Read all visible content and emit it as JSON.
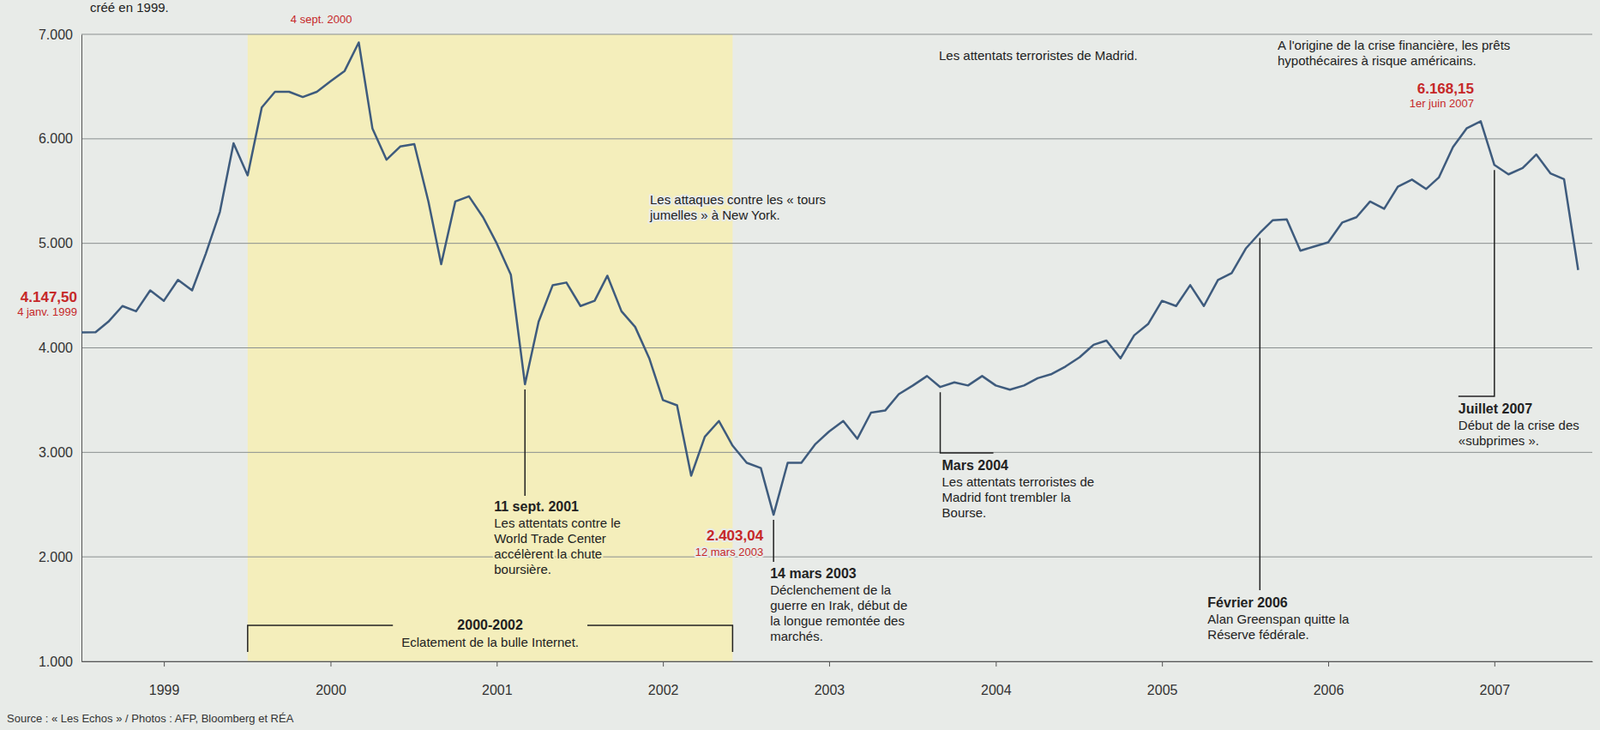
{
  "chart_data": {
    "type": "line",
    "color": "#3e5b7d",
    "grid": true,
    "x": [
      "1999-01",
      "1999-02",
      "1999-03",
      "1999-04",
      "1999-05",
      "1999-06",
      "1999-07",
      "1999-08",
      "1999-09",
      "1999-10",
      "1999-11",
      "1999-12",
      "2000-01",
      "2000-02",
      "2000-03",
      "2000-04",
      "2000-05",
      "2000-06",
      "2000-07",
      "2000-08",
      "2000-09",
      "2000-10",
      "2000-11",
      "2000-12",
      "2001-01",
      "2001-02",
      "2001-03",
      "2001-04",
      "2001-05",
      "2001-06",
      "2001-07",
      "2001-08",
      "2001-09",
      "2001-10",
      "2001-11",
      "2001-12",
      "2002-01",
      "2002-02",
      "2002-03",
      "2002-04",
      "2002-05",
      "2002-06",
      "2002-07",
      "2002-08",
      "2002-09",
      "2002-10",
      "2002-11",
      "2002-12",
      "2003-01",
      "2003-02",
      "2003-03",
      "2003-04",
      "2003-05",
      "2003-06",
      "2003-07",
      "2003-08",
      "2003-09",
      "2003-10",
      "2003-11",
      "2003-12",
      "2004-01",
      "2004-02",
      "2004-03",
      "2004-04",
      "2004-05",
      "2004-06",
      "2004-07",
      "2004-08",
      "2004-09",
      "2004-10",
      "2004-11",
      "2004-12",
      "2005-01",
      "2005-02",
      "2005-03",
      "2005-04",
      "2005-05",
      "2005-06",
      "2005-07",
      "2005-08",
      "2005-09",
      "2005-10",
      "2005-11",
      "2005-12",
      "2006-01",
      "2006-02",
      "2006-03",
      "2006-04",
      "2006-05",
      "2006-06",
      "2006-07",
      "2006-08",
      "2006-09",
      "2006-10",
      "2006-11",
      "2006-12",
      "2007-01",
      "2007-02",
      "2007-03",
      "2007-04",
      "2007-05",
      "2007-06",
      "2007-07",
      "2007-08",
      "2007-09",
      "2007-10",
      "2007-11",
      "2007-12",
      "2008-01"
    ],
    "values": [
      4147.5,
      4150,
      4250,
      4400,
      4350,
      4550,
      4450,
      4650,
      4550,
      4900,
      5300,
      5958,
      5650,
      6300,
      6450,
      6450,
      6400,
      6450,
      6550,
      6650,
      6922.33,
      6100,
      5800,
      5926,
      5950,
      5400,
      4800,
      5400,
      5450,
      5250,
      5000,
      4700,
      3652,
      4250,
      4600,
      4625,
      4400,
      4450,
      4690,
      4350,
      4200,
      3900,
      3500,
      3450,
      2777,
      3150,
      3300,
      3064,
      2900,
      2850,
      2403.04,
      2900,
      2900,
      3080,
      3200,
      3300,
      3130,
      3380,
      3400,
      3557,
      3640,
      3730,
      3625,
      3670,
      3640,
      3730,
      3640,
      3600,
      3640,
      3710,
      3750,
      3821,
      3910,
      4030,
      4070,
      3900,
      4120,
      4230,
      4450,
      4400,
      4600,
      4400,
      4650,
      4715,
      4950,
      5100,
      5220,
      5230,
      4930,
      4970,
      5010,
      5200,
      5250,
      5400,
      5330,
      5542,
      5610,
      5520,
      5630,
      5920,
      6100,
      6168.15,
      5750,
      5660,
      5720,
      5850,
      5670,
      5614,
      4745
    ],
    "xlim": [
      "1999-01",
      "2008-02"
    ],
    "xticks": [
      {
        "value": "1999-07",
        "label": "1999"
      },
      {
        "value": "2000-07",
        "label": "2000"
      },
      {
        "value": "2001-07",
        "label": "2001"
      },
      {
        "value": "2002-07",
        "label": "2002"
      },
      {
        "value": "2003-07",
        "label": "2003"
      },
      {
        "value": "2004-07",
        "label": "2004"
      },
      {
        "value": "2005-07",
        "label": "2005"
      },
      {
        "value": "2006-07",
        "label": "2006"
      },
      {
        "value": "2007-07",
        "label": "2007"
      }
    ],
    "ylim": [
      1000,
      7000
    ],
    "yticks": [
      {
        "value": 1000,
        "label": "1.000"
      },
      {
        "value": 2000,
        "label": "2.000"
      },
      {
        "value": 3000,
        "label": "3.000"
      },
      {
        "value": 4000,
        "label": "4.000"
      },
      {
        "value": 5000,
        "label": "5.000"
      },
      {
        "value": 6000,
        "label": "6.000"
      },
      {
        "value": 7000,
        "label": "7.000"
      }
    ],
    "highlights": [
      {
        "x": "1999-01",
        "label": "4.147,50",
        "date": "4 janv. 1999"
      },
      {
        "x": "2000-09",
        "date": "4 sept. 2000"
      },
      {
        "x": "2003-03",
        "label": "2.403,04",
        "date": "12 mars 2003"
      },
      {
        "x": "2007-06",
        "label": "6.168,15",
        "date": "1er juin 2007"
      }
    ],
    "annotations": [
      {
        "x": "2001-09",
        "title": "11 sept. 2001",
        "text": "Les attentats contre le World Trade Center accélèrent la chute boursière."
      },
      {
        "x": "2003-03",
        "title": "14 mars 2003",
        "text": "Déclenchement de la guerre en Irak, début de la longue remontée des marchés."
      },
      {
        "x": "2004-03",
        "title": "Mars 2004",
        "text": "Les attentats terroristes de Madrid font trembler la Bourse."
      },
      {
        "x": "2006-02",
        "title": "Février 2006",
        "text": "Alan Greenspan quitte la Réserve fédérale."
      },
      {
        "x": "2007-07",
        "title": "Juillet 2007",
        "text": "Début de la crise des «subprimes »."
      }
    ],
    "periods": [
      {
        "start": "2000-01",
        "end": "2002-12",
        "label": "2000-2002",
        "text": "Eclatement de la bulle Internet."
      }
    ],
    "captions": [
      "créé en 1999.",
      "Les attaques contre les « tours jumelles » à New York.",
      "Les attentats terroristes de Madrid.",
      "A l'origine de la crise financière, les prêts hypothécaires à risque américains."
    ],
    "source": "Source : « Les Echos » / Photos : AFP, Bloomberg et RÉA"
  }
}
